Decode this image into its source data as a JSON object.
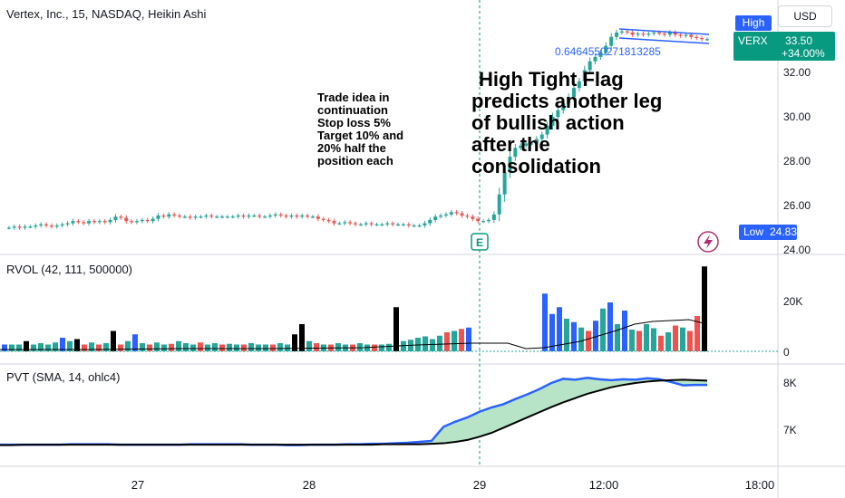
{
  "header": {
    "symbol_title": "Vertex, Inc., 15, NASDAQ, Heikin Ashi",
    "currency": "USD"
  },
  "price_tags": {
    "high_label": "High",
    "ticker": "VERX",
    "last_price": "33.50",
    "change_pct": "+34.00%",
    "low_label": "Low",
    "low_value": "24.83"
  },
  "annotations": {
    "fib_text": "0.6464550271813285",
    "earnings_marker": "E",
    "trade_idea": [
      "Trade idea in",
      "continuation",
      "Stop loss 5%",
      "Target 10% and",
      "20% half the",
      "position each"
    ],
    "flag_note": [
      "High Tight Flag",
      "predicts  another leg",
      "of bullish action",
      "after the",
      "consolidation"
    ]
  },
  "indicators": {
    "rvol_label": "RVOL (42, 111, 500000)",
    "pvt_label": "PVT (SMA, 14, ohlc4)"
  },
  "axes": {
    "price_ticks": [
      "32.00",
      "30.00",
      "28.00",
      "26.00",
      "24.00"
    ],
    "volume_ticks": [
      "20K",
      "0"
    ],
    "pvt_ticks": [
      "8K",
      "7K"
    ],
    "time_ticks": [
      "27",
      "28",
      "29",
      "12:00",
      "18:00"
    ]
  },
  "colors": {
    "up": "#26a69a",
    "down": "#ef5350",
    "blue": "#2962ff",
    "black": "#000000",
    "price_tag": "#089981",
    "fill": "#b7e4c7"
  },
  "chart_data": {
    "type": "candlestick",
    "title": "Vertex, Inc., 15, NASDAQ, Heikin Ashi",
    "y_range": [
      23.8,
      34.2
    ],
    "price_series": [
      25.0,
      25.0,
      25.05,
      25.0,
      25.05,
      25.05,
      25.1,
      25.15,
      25.1,
      25.05,
      25.1,
      25.15,
      25.2,
      25.3,
      25.25,
      25.2,
      25.3,
      25.25,
      25.3,
      25.25,
      25.35,
      25.5,
      25.45,
      25.3,
      25.25,
      25.3,
      25.35,
      25.3,
      25.4,
      25.55,
      25.5,
      25.6,
      25.55,
      25.5,
      25.5,
      25.45,
      25.5,
      25.5,
      25.55,
      25.5,
      25.5,
      25.5,
      25.5,
      25.5,
      25.55,
      25.5,
      25.55,
      25.55,
      25.5,
      25.5,
      25.55,
      25.6,
      25.55,
      25.5,
      25.55,
      25.5,
      25.55,
      25.5,
      25.5,
      25.4,
      25.35,
      25.3,
      25.2,
      25.2,
      25.25,
      25.2,
      25.15,
      25.15,
      25.2,
      25.15,
      25.15,
      25.15,
      25.2,
      25.15,
      25.15,
      25.15,
      25.1,
      25.1,
      25.1,
      25.2,
      25.35,
      25.5,
      25.55,
      25.6,
      25.7,
      25.65,
      25.55,
      25.5,
      25.4,
      25.3,
      25.3,
      25.35,
      25.6,
      26.5,
      27.5,
      28.2,
      28.6,
      28.7,
      28.8,
      28.8,
      29.0,
      29.2,
      29.6,
      30.0,
      30.3,
      30.6,
      30.9,
      31.3,
      31.6,
      32.1,
      32.5,
      32.7,
      32.9,
      33.2,
      33.6,
      33.8,
      33.85,
      33.8,
      33.7,
      33.75,
      33.7,
      33.75,
      33.8,
      33.75,
      33.7,
      33.8,
      33.7,
      33.65,
      33.7,
      33.6,
      33.55,
      33.5,
      33.5
    ],
    "volume_ticks": [
      "20K",
      "0"
    ],
    "pvt_ticks": [
      "8K",
      "7K"
    ],
    "pvt": [
      6690,
      6690,
      6690,
      6690,
      6690,
      6690,
      6700,
      6700,
      6700,
      6700,
      6690,
      6690,
      6690,
      6690,
      6690,
      6690,
      6700,
      6700,
      6700,
      6700,
      6700,
      6690,
      6690,
      6690,
      6680,
      6680,
      6690,
      6690,
      6690,
      6700,
      6700,
      6710,
      6710,
      6720,
      6730,
      6750,
      6770,
      7070,
      7180,
      7270,
      7390,
      7480,
      7550,
      7660,
      7760,
      7870,
      8000,
      8090,
      8070,
      8110,
      8080,
      8060,
      8080,
      8070,
      8100,
      8080,
      8020,
      7950,
      7960,
      7960
    ],
    "pvt_sma": [
      6680,
      6680,
      6690,
      6690,
      6690,
      6690,
      6690,
      6690,
      6690,
      6690,
      6690,
      6690,
      6690,
      6690,
      6690,
      6690,
      6690,
      6690,
      6690,
      6690,
      6690,
      6690,
      6690,
      6690,
      6690,
      6690,
      6690,
      6690,
      6690,
      6690,
      6690,
      6690,
      6700,
      6700,
      6700,
      6700,
      6710,
      6720,
      6750,
      6790,
      6860,
      6940,
      7050,
      7160,
      7270,
      7380,
      7490,
      7590,
      7680,
      7770,
      7840,
      7910,
      7960,
      8000,
      8030,
      8050,
      8060,
      8070,
      8060,
      8050
    ]
  }
}
